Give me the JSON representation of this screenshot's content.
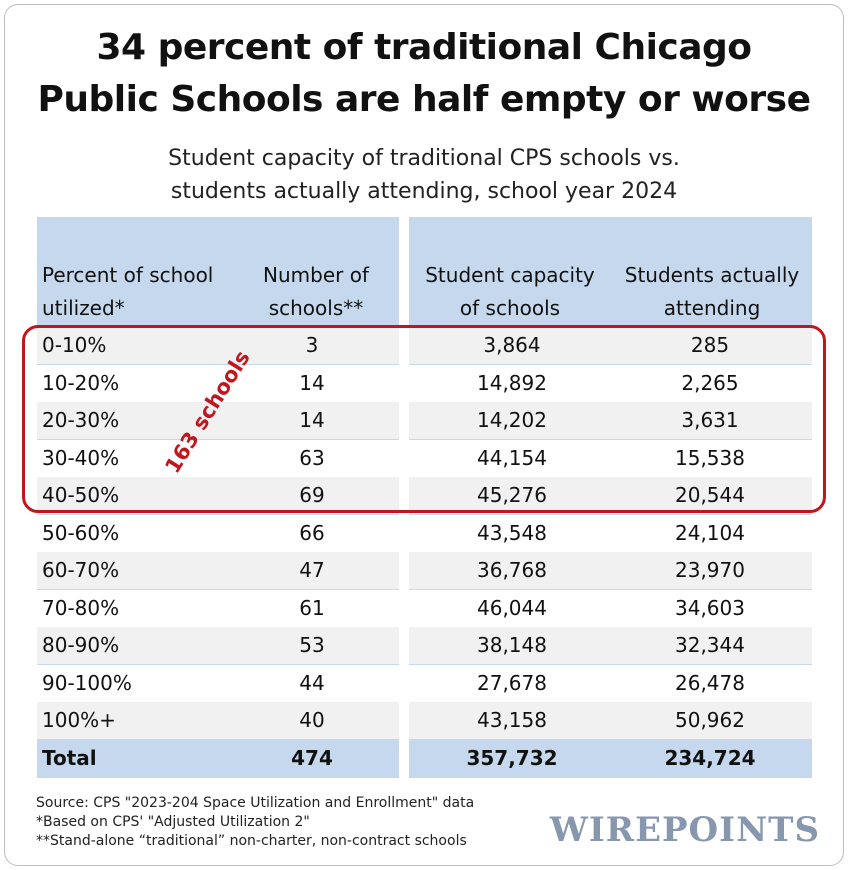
{
  "title_line1": "34 percent of traditional Chicago",
  "title_line2": "Public Schools are half empty or worse",
  "subtitle_line1": "Student capacity of traditional CPS schools vs.",
  "subtitle_line2": "students actually attending, school year 2024",
  "headers": {
    "pct_line1": "Percent of school",
    "pct_line2": "utilized*",
    "num_line1": "Number of",
    "num_line2": "schools**",
    "cap_line1": "Student capacity",
    "cap_line2": "of schools",
    "att_line1": "Students actually",
    "att_line2": "attending"
  },
  "callout": "163 schools",
  "footnotes": [
    "Source: CPS \"2023-204 Space Utilization and Enrollment\" data",
    "*Based on CPS' \"Adjusted Utilization 2\"",
    "**Stand-alone “traditional” non-charter, non-contract schools"
  ],
  "logo": "WIREPOINTS",
  "colors": {
    "band": "#c6d8ed",
    "highlight": "#c0171e",
    "logo": "#8797ae"
  },
  "chart_data": {
    "type": "table",
    "title": "34 percent of traditional Chicago Public Schools are half empty or worse",
    "subtitle": "Student capacity of traditional CPS schools vs. students actually attending, school year 2024",
    "columns": [
      "Percent of school utilized*",
      "Number of schools**",
      "Student capacity of schools",
      "Students actually attending"
    ],
    "rows": [
      [
        "0-10%",
        "3",
        "3,864",
        "285"
      ],
      [
        "10-20%",
        "14",
        "14,892",
        "2,265"
      ],
      [
        "20-30%",
        "14",
        "14,202",
        "3,631"
      ],
      [
        "30-40%",
        "63",
        "44,154",
        "15,538"
      ],
      [
        "40-50%",
        "69",
        "45,276",
        "20,544"
      ],
      [
        "50-60%",
        "66",
        "43,548",
        "24,104"
      ],
      [
        "60-70%",
        "47",
        "36,768",
        "23,970"
      ],
      [
        "70-80%",
        "61",
        "46,044",
        "34,603"
      ],
      [
        "80-90%",
        "53",
        "38,148",
        "32,344"
      ],
      [
        "90-100%",
        "44",
        "27,678",
        "26,478"
      ],
      [
        "100%+",
        "40",
        "43,158",
        "50,962"
      ]
    ],
    "total": [
      "Total",
      "474",
      "357,732",
      "234,724"
    ],
    "highlighted_rows": [
      0,
      1,
      2,
      3,
      4
    ]
  }
}
